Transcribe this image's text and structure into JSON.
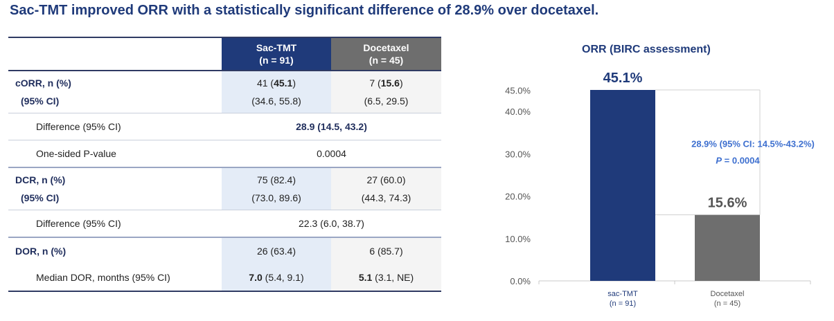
{
  "title": "Sac-TMT improved ORR with a statistically significant difference of 28.9% over docetaxel.",
  "table": {
    "headers": [
      {
        "name": "Sac-TMT",
        "n": "(n = 91)"
      },
      {
        "name": "Docetaxel",
        "n": "(n = 45)"
      }
    ],
    "corr": {
      "label": "cORR, n (%)",
      "ci_label": "(95% CI)",
      "sac_n": "41 (",
      "sac_pct": "45.1",
      "sac_close": ")",
      "sac_ci": "(34.6, 55.8)",
      "doc_n": "7 (",
      "doc_pct": "15.6",
      "doc_close": ")",
      "doc_ci": "(6.5, 29.5)"
    },
    "corr_diff": {
      "label": "Difference (95% CI)",
      "value": "28.9 (14.5, 43.2)"
    },
    "corr_p": {
      "label": "One-sided P-value",
      "value": "0.0004"
    },
    "dcr": {
      "label": "DCR, n (%)",
      "ci_label": "(95% CI)",
      "sac": "75 (82.4)",
      "sac_ci": "(73.0, 89.6)",
      "doc": "27 (60.0)",
      "doc_ci": "(44.3, 74.3)"
    },
    "dcr_diff": {
      "label": "Difference (95% CI)",
      "value": "22.3 (6.0, 38.7)"
    },
    "dor": {
      "label": "DOR, n (%)",
      "sac": "26 (63.4)",
      "doc": "6 (85.7)"
    },
    "median_dor": {
      "label": "Median DOR, months (95% CI)",
      "sac_bold": "7.0",
      "sac_rest": " (5.4, 9.1)",
      "doc_bold": "5.1",
      "doc_rest": " (3.1, NE)"
    }
  },
  "chart_data": {
    "type": "bar",
    "title": "ORR (BIRC assessment)",
    "categories": [
      "sac-TMT",
      "Docetaxel"
    ],
    "category_sublabels": [
      "(n = 91)",
      "(n = 45)"
    ],
    "values": [
      45.1,
      15.6
    ],
    "value_labels": [
      "45.1%",
      "15.6%"
    ],
    "colors": [
      "#1f3a7a",
      "#6e6e6e"
    ],
    "ylim": [
      0,
      45.1
    ],
    "yticks": [
      0,
      10,
      20,
      30,
      40,
      45
    ],
    "ytick_labels": [
      "0.0%",
      "10.0%",
      "20.0%",
      "30.0%",
      "40.0%",
      "45.0%"
    ],
    "annotation": {
      "difference": "28.9% (95% CI: 14.5%-43.2%)",
      "p_italic": "P",
      "p_rest": " = 0.0004"
    }
  }
}
